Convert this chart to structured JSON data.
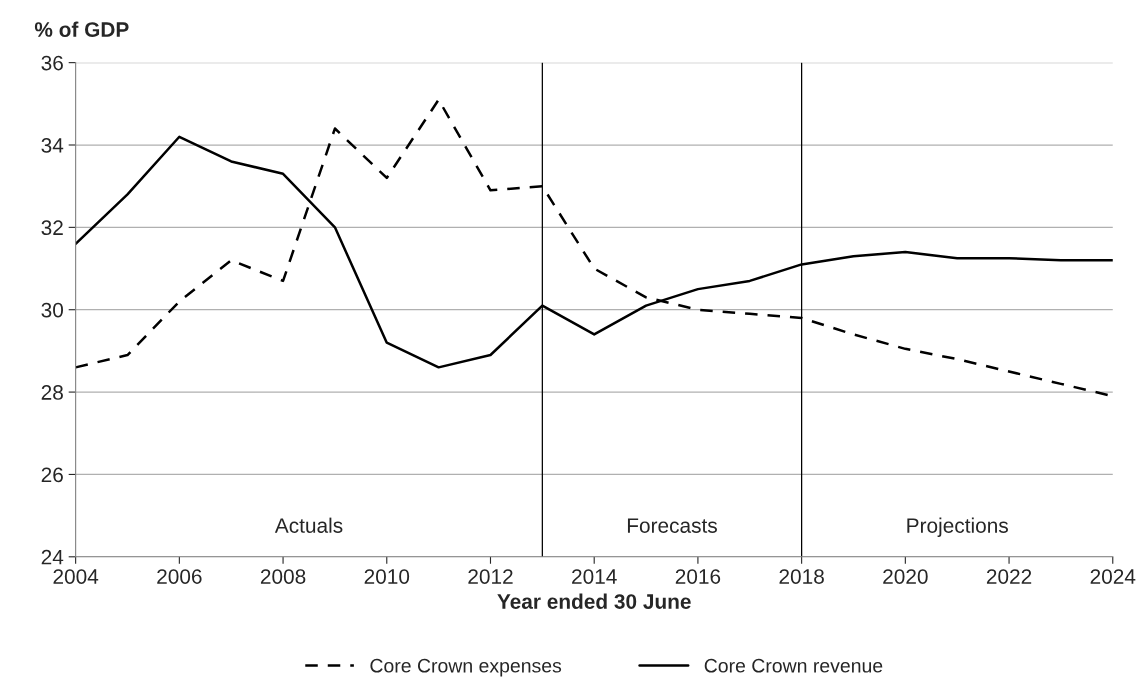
{
  "chart_data": {
    "type": "line",
    "ylabel": "% of GDP",
    "xlabel": "Year ended 30 June",
    "x": [
      2004,
      2005,
      2006,
      2007,
      2008,
      2009,
      2010,
      2011,
      2012,
      2013,
      2014,
      2015,
      2016,
      2017,
      2018,
      2019,
      2020,
      2021,
      2022,
      2023,
      2024
    ],
    "series": [
      {
        "name": "Core Crown expenses",
        "color": "#000000",
        "line_style": "dashed",
        "values": [
          28.6,
          28.9,
          30.2,
          31.2,
          30.7,
          34.4,
          33.2,
          35.1,
          32.9,
          33.0,
          31.0,
          30.3,
          30.0,
          29.9,
          29.8,
          29.4,
          29.05,
          28.8,
          28.5,
          28.2,
          27.9
        ]
      },
      {
        "name": "Core Crown revenue",
        "color": "#000000",
        "line_style": "solid",
        "values": [
          31.6,
          32.8,
          34.2,
          33.6,
          33.3,
          32.0,
          29.2,
          28.6,
          28.9,
          30.1,
          29.4,
          30.1,
          30.5,
          30.7,
          31.1,
          31.3,
          31.4,
          31.25,
          31.25,
          31.2,
          31.2
        ]
      }
    ],
    "xlim": [
      2004,
      2024
    ],
    "xticks": [
      2004,
      2006,
      2008,
      2010,
      2012,
      2014,
      2016,
      2018,
      2020,
      2022,
      2024
    ],
    "ylim": [
      24,
      36
    ],
    "yticks": [
      24,
      26,
      28,
      30,
      32,
      34,
      36
    ],
    "ref_lines": [
      {
        "axis": "x",
        "value": 2013,
        "color": "#000000"
      },
      {
        "axis": "x",
        "value": 2018,
        "color": "#000000"
      }
    ],
    "annotations": [
      "Actuals",
      "Forecasts",
      "Projections"
    ],
    "grid": "y",
    "legend": "bottom",
    "marker": "none"
  }
}
